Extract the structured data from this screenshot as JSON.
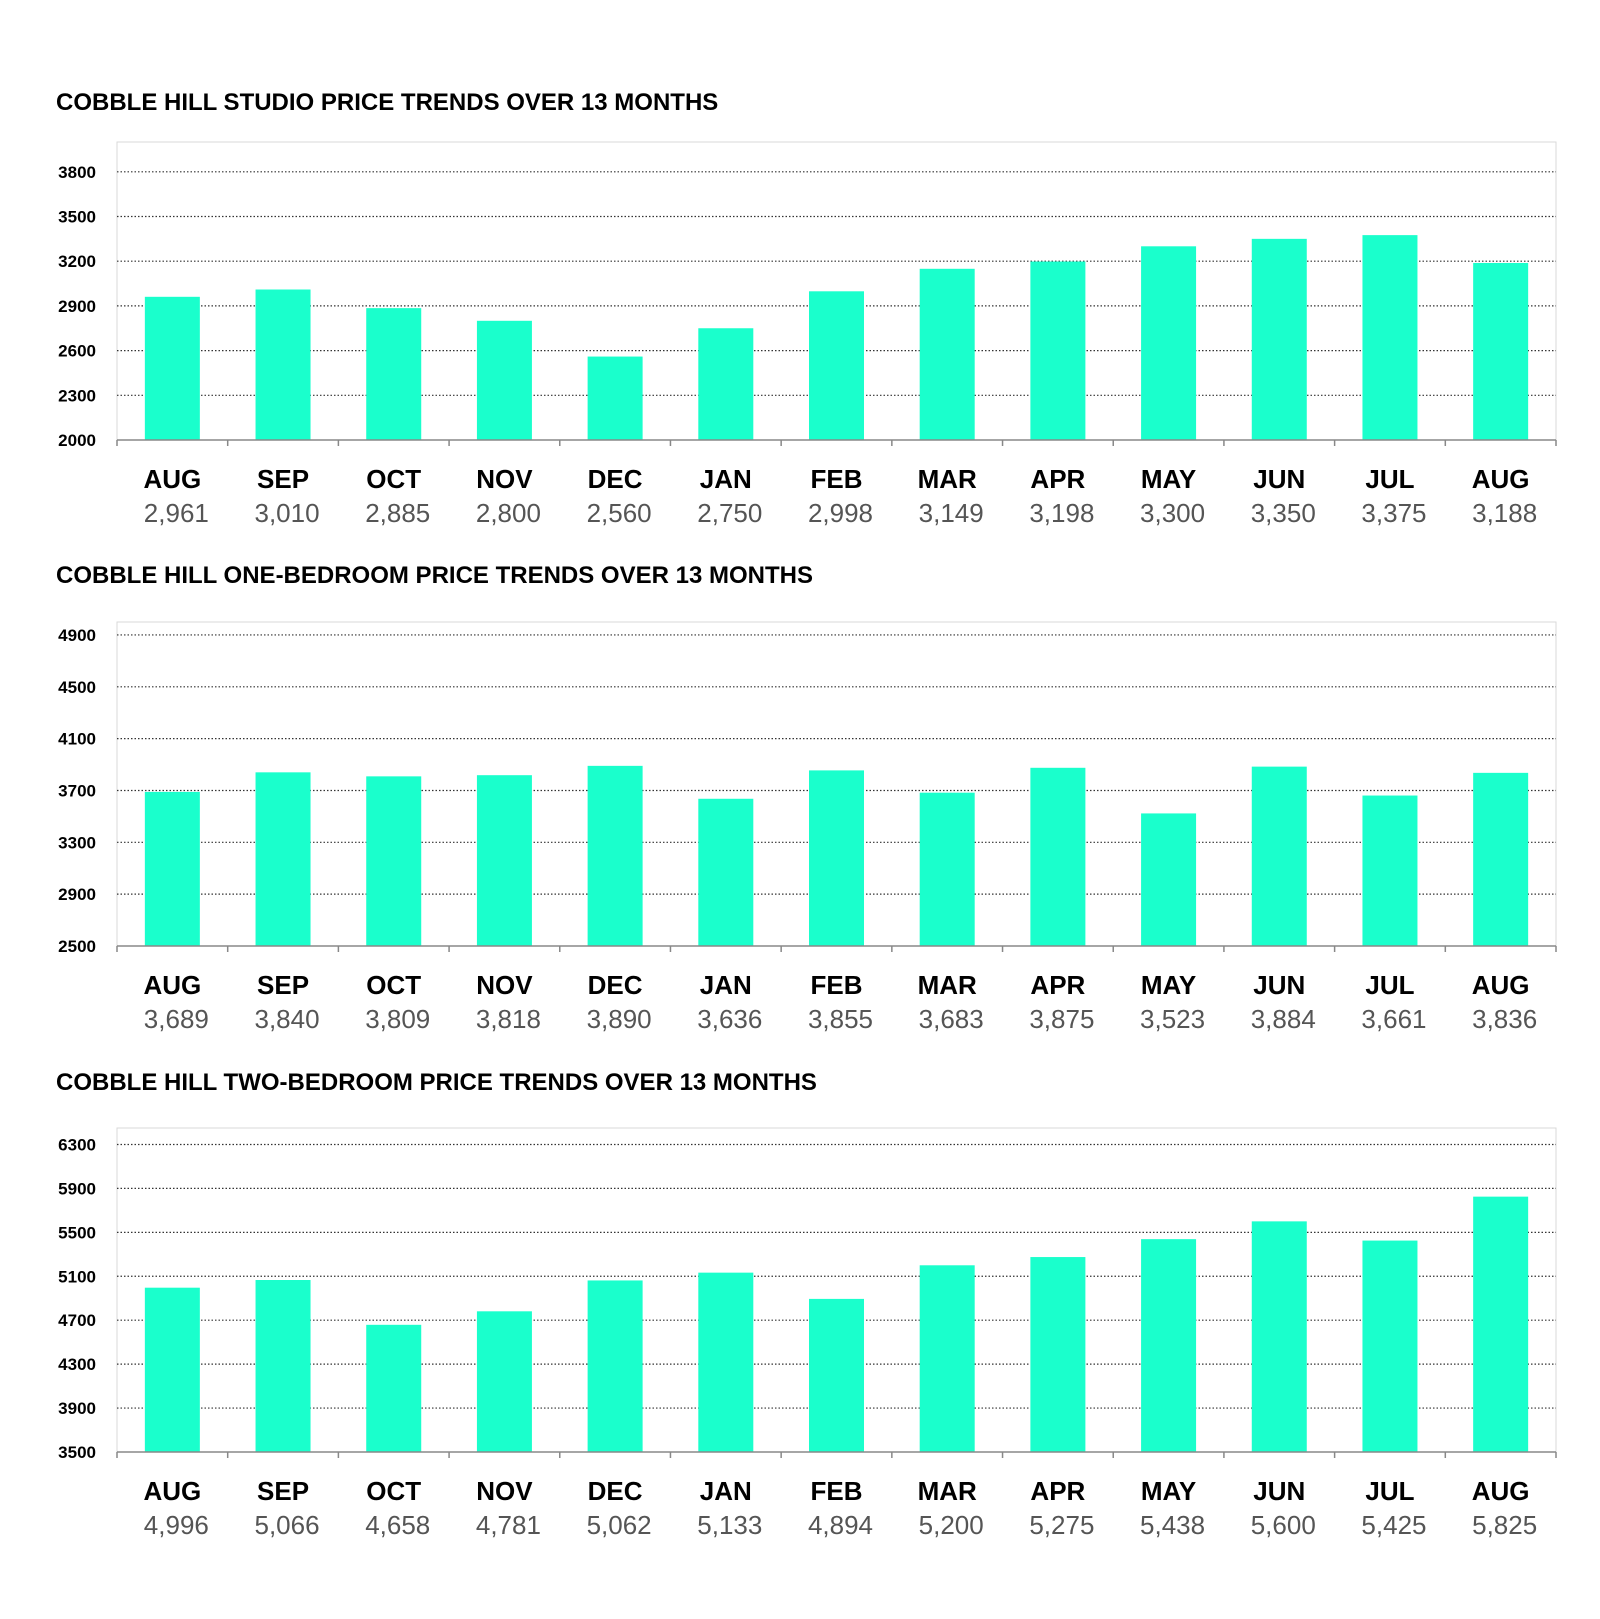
{
  "colors": {
    "bar": "#1affcc",
    "grid": "#333333",
    "frame": "#d9d9d9",
    "axis": "#888888"
  },
  "chart_data": [
    {
      "type": "bar",
      "title": "COBBLE HILL STUDIO PRICE TRENDS OVER 13 MONTHS",
      "categories": [
        "AUG",
        "SEP",
        "OCT",
        "NOV",
        "DEC",
        "JAN",
        "FEB",
        "MAR",
        "APR",
        "MAY",
        "JUN",
        "JUL",
        "AUG"
      ],
      "values": [
        2961,
        3010,
        2885,
        2800,
        2560,
        2750,
        2998,
        3149,
        3198,
        3300,
        3350,
        3375,
        3188
      ],
      "value_labels": [
        "2,961",
        "3,010",
        "2,885",
        "2,800",
        "2,560",
        "2,750",
        "2,998",
        "3,149",
        "3,198",
        "3,300",
        "3,350",
        "3,375",
        "3,188"
      ],
      "yticks": [
        2000,
        2300,
        2600,
        2900,
        3200,
        3500,
        3800
      ],
      "ylim": [
        2000,
        4000
      ],
      "xlabel": "",
      "ylabel": "",
      "grid": true,
      "legend": false
    },
    {
      "type": "bar",
      "title": "COBBLE HILL ONE-BEDROOM PRICE TRENDS OVER 13 MONTHS",
      "categories": [
        "AUG",
        "SEP",
        "OCT",
        "NOV",
        "DEC",
        "JAN",
        "FEB",
        "MAR",
        "APR",
        "MAY",
        "JUN",
        "JUL",
        "AUG"
      ],
      "values": [
        3689,
        3840,
        3809,
        3818,
        3890,
        3636,
        3855,
        3683,
        3875,
        3523,
        3884,
        3661,
        3836
      ],
      "value_labels": [
        "3,689",
        "3,840",
        "3,809",
        "3,818",
        "3,890",
        "3,636",
        "3,855",
        "3,683",
        "3,875",
        "3,523",
        "3,884",
        "3,661",
        "3,836"
      ],
      "yticks": [
        2500,
        2900,
        3300,
        3700,
        4100,
        4500,
        4900
      ],
      "ylim": [
        2500,
        5000
      ],
      "xlabel": "",
      "ylabel": "",
      "grid": true,
      "legend": false
    },
    {
      "type": "bar",
      "title": "COBBLE HILL TWO-BEDROOM PRICE TRENDS OVER 13 MONTHS",
      "categories": [
        "AUG",
        "SEP",
        "OCT",
        "NOV",
        "DEC",
        "JAN",
        "FEB",
        "MAR",
        "APR",
        "MAY",
        "JUN",
        "JUL",
        "AUG"
      ],
      "values": [
        4996,
        5066,
        4658,
        4781,
        5062,
        5133,
        4894,
        5200,
        5275,
        5438,
        5600,
        5425,
        5825
      ],
      "value_labels": [
        "4,996",
        "5,066",
        "4,658",
        "4,781",
        "5,062",
        "5,133",
        "4,894",
        "5,200",
        "5,275",
        "5,438",
        "5,600",
        "5,425",
        "5,825"
      ],
      "yticks": [
        3500,
        3900,
        4300,
        4700,
        5100,
        5500,
        5900,
        6300
      ],
      "ylim": [
        3500,
        6450
      ],
      "xlabel": "",
      "ylabel": "",
      "grid": true,
      "legend": false
    }
  ]
}
